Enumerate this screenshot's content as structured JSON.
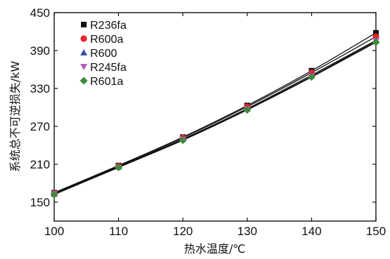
{
  "chart_data": {
    "type": "line",
    "x_label": "热水温度/℃",
    "y_label": "系统总不可逆损失/kW",
    "x_range": [
      100,
      150
    ],
    "y_range": [
      120,
      450
    ],
    "x_ticks": [
      100,
      110,
      120,
      130,
      140,
      150
    ],
    "y_ticks": [
      150,
      210,
      270,
      330,
      390,
      450
    ],
    "x": [
      100,
      110,
      120,
      130,
      140,
      150
    ],
    "legend_position": "top-left",
    "series": [
      {
        "name": "R236fa",
        "marker": "square",
        "color": "#111111",
        "values": [
          165,
          208,
          253,
          303,
          358,
          418
        ]
      },
      {
        "name": "R600a",
        "marker": "circle",
        "color": "#e8242b",
        "values": [
          164,
          207,
          252,
          301,
          355,
          412
        ]
      },
      {
        "name": "R600",
        "marker": "triangle-up",
        "color": "#3c4fa3",
        "values": [
          163,
          206,
          250,
          298,
          351,
          406
        ]
      },
      {
        "name": "R245fa",
        "marker": "triangle-down",
        "color": "#b160b8",
        "values": [
          163,
          205,
          249,
          297,
          349,
          405
        ]
      },
      {
        "name": "R601a",
        "marker": "diamond",
        "color": "#3f8a3a",
        "values": [
          162,
          205,
          248,
          296,
          348,
          403
        ]
      }
    ]
  }
}
